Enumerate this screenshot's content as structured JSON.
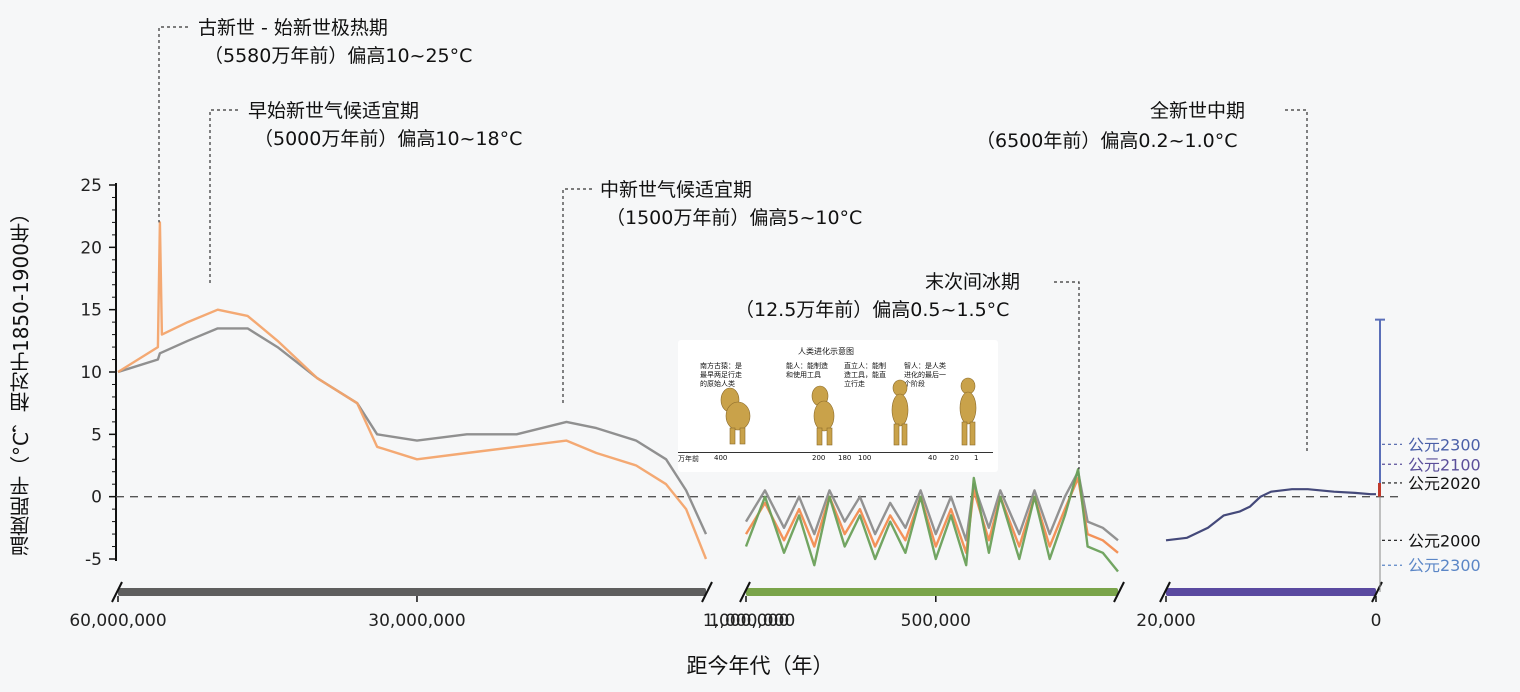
{
  "chart_data": {
    "type": "line",
    "title": "",
    "ylabel": "温度距平（°C，相对于1850-1900年）",
    "xlabel": "距今年代（年）",
    "ylim": [
      -5,
      25
    ],
    "yticks": [
      25,
      20,
      15,
      10,
      5,
      0,
      -5
    ],
    "reference_line": 0,
    "segments": [
      {
        "name": "deep-time",
        "x_range_years_bp": [
          60000000,
          1000000
        ],
        "xtick_labels": [
          "60,000,000",
          "30,000,000",
          "1,000,000"
        ],
        "series": [
          {
            "name": "gray-reconstruction",
            "color": "#8a8a8a",
            "x": [
              60000000,
              56000000,
              55800000,
              53000000,
              50000000,
              47000000,
              44000000,
              40000000,
              36000000,
              34000000,
              30000000,
              25000000,
              20000000,
              15000000,
              12000000,
              8000000,
              5000000,
              3000000,
              1000000
            ],
            "y": [
              10,
              11,
              11.5,
              12.5,
              13.5,
              13.5,
              12,
              9.5,
              7.5,
              5,
              4.5,
              5,
              5,
              6,
              5.5,
              4.5,
              3,
              0.5,
              -3
            ]
          },
          {
            "name": "orange-reconstruction",
            "color": "#f3a46c",
            "x": [
              60000000,
              56000000,
              55800000,
              55600000,
              53000000,
              50000000,
              47000000,
              44000000,
              40000000,
              36000000,
              34000000,
              30000000,
              25000000,
              20000000,
              15000000,
              12000000,
              8000000,
              5000000,
              3000000,
              1000000
            ],
            "y": [
              10,
              12,
              22,
              13,
              14,
              15,
              14.5,
              12.5,
              9.5,
              7.5,
              4,
              3,
              3.5,
              4,
              4.5,
              3.5,
              2.5,
              1,
              -1,
              -5
            ]
          }
        ]
      },
      {
        "name": "glacial-cycles",
        "x_range_years_bp": [
          1000000,
          20000
        ],
        "xtick_labels": [
          "1,000,000",
          "500,000"
        ],
        "series": [
          {
            "name": "gray-glacial",
            "color": "#8c8c8c",
            "x": [
              1000000,
              950000,
              900000,
              860000,
              820000,
              780000,
              740000,
              700000,
              660000,
              620000,
              580000,
              540000,
              500000,
              460000,
              420000,
              400000,
              360000,
              330000,
              280000,
              240000,
              200000,
              160000,
              125000,
              100000,
              60000,
              20000
            ],
            "y": [
              -2,
              0.5,
              -2.5,
              0,
              -3,
              0.5,
              -2,
              0,
              -3,
              -0.5,
              -2.5,
              0.5,
              -3,
              0,
              -3.5,
              1,
              -2.5,
              0.5,
              -3,
              0.5,
              -3,
              0,
              2,
              -2,
              -2.5,
              -3.5
            ]
          },
          {
            "name": "orange-glacial",
            "color": "#f28c50",
            "x": [
              1000000,
              950000,
              900000,
              860000,
              820000,
              780000,
              740000,
              700000,
              660000,
              620000,
              580000,
              540000,
              500000,
              460000,
              420000,
              400000,
              360000,
              330000,
              280000,
              240000,
              200000,
              160000,
              125000,
              100000,
              60000,
              20000
            ],
            "y": [
              -3,
              -0.5,
              -3.5,
              -1,
              -4,
              0,
              -3,
              -1,
              -4,
              -1.5,
              -3.5,
              0,
              -4,
              -1,
              -4.5,
              0.5,
              -3.5,
              0,
              -4,
              0,
              -4,
              -1,
              1.5,
              -3,
              -3.5,
              -4.5
            ]
          },
          {
            "name": "green-glacial",
            "color": "#6aa05a",
            "x": [
              1000000,
              950000,
              900000,
              860000,
              820000,
              780000,
              740000,
              700000,
              660000,
              620000,
              580000,
              540000,
              500000,
              460000,
              420000,
              400000,
              360000,
              330000,
              280000,
              240000,
              200000,
              160000,
              125000,
              100000,
              60000,
              20000
            ],
            "y": [
              -4,
              0,
              -4.5,
              -1.5,
              -5.5,
              0,
              -4,
              -1.5,
              -5,
              -2,
              -4.5,
              0,
              -5,
              -1.5,
              -5.5,
              1.5,
              -4.5,
              0,
              -5,
              0,
              -5,
              -1.5,
              2.2,
              -4,
              -4.5,
              -6
            ]
          }
        ]
      },
      {
        "name": "holocene",
        "x_range_years_bp": [
          20000,
          0
        ],
        "xtick_labels": [
          "20,000",
          "0"
        ],
        "series": [
          {
            "name": "holocene-temperature",
            "color": "#3a3f73",
            "x": [
              20000,
              18000,
              16000,
              14500,
              13000,
              12000,
              11000,
              10000,
              8000,
              6500,
              4000,
              2000,
              500,
              0
            ],
            "y": [
              -3.5,
              -3.3,
              -2.5,
              -1.5,
              -1.2,
              -0.8,
              0,
              0.4,
              0.6,
              0.6,
              0.4,
              0.3,
              0.2,
              0.2
            ]
          }
        ]
      }
    ],
    "annotations": [
      {
        "title": "古新世 - 始新世极热期",
        "detail": "（5580万年前）偏高10~25°C"
      },
      {
        "title": "早始新世气候适宜期",
        "detail": "（5000万年前）偏高10~18°C"
      },
      {
        "title": "中新世气候适宜期",
        "detail": "（1500万年前）偏高5~10°C"
      },
      {
        "title": "末次间冰期",
        "detail": "（12.5万年前）偏高0.5~1.5°C"
      },
      {
        "title": "全新世中期",
        "detail": "（6500年前）偏高0.2~1.0°C"
      }
    ],
    "projection_labels": [
      {
        "label": "公元2300",
        "value": 4.2,
        "color": "#4a5fa8"
      },
      {
        "label": "公元2100",
        "value": 2.6,
        "color": "#5a4f9a"
      },
      {
        "label": "公元2020",
        "value": 1.1,
        "color": "#111111"
      },
      {
        "label": "公元2000",
        "value": -3.5,
        "color": "#111111"
      },
      {
        "label": "公元2300",
        "value": -5.5,
        "color": "#5b86c6"
      }
    ],
    "projection_bar_max": 14.2
  },
  "evolution_inset": {
    "title": "人类进化示意图",
    "labels": [
      "南方古猿：是最早两足行走的原始人类",
      "能人：能制造和使用工具",
      "直立人：能制造工具，能直立行走",
      "智人：是人类进化的最后一个阶段"
    ],
    "scale_unit": "万年前",
    "scale_ticks": [
      "400",
      "200",
      "180",
      "100",
      "40",
      "20",
      "1"
    ]
  }
}
